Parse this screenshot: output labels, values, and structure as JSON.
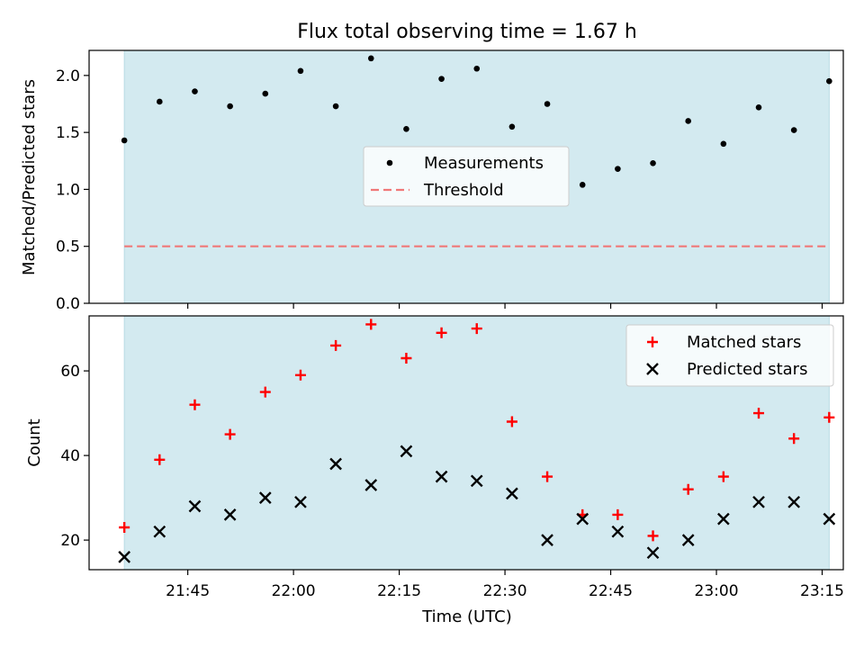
{
  "title": "Flux total observing time = 1.67 h",
  "x_axis": {
    "label": "Time (UTC)",
    "range": [
      "21:31",
      "23:18"
    ],
    "ticks": [
      "21:45",
      "22:00",
      "22:15",
      "22:30",
      "22:45",
      "23:00",
      "23:15"
    ]
  },
  "chart_data": [
    {
      "type": "scatter",
      "title": "Flux total observing time = 1.67 h",
      "ylabel": "Matched/Predicted stars",
      "ylim": [
        0,
        2.22
      ],
      "yticks": [
        "0.0",
        "0.5",
        "1.0",
        "1.5",
        "2.0"
      ],
      "shaded_region": {
        "start": "21:36",
        "end": "23:16",
        "color": "#d3eaf0"
      },
      "threshold": {
        "name": "Threshold",
        "value": 0.5,
        "color": "#f07878",
        "style": "dashed"
      },
      "legend": {
        "placement": "center",
        "entries": [
          "Measurements",
          "Threshold"
        ]
      },
      "series": [
        {
          "name": "Measurements",
          "marker": "dot",
          "color": "#000000",
          "x": [
            "21:36",
            "21:41",
            "21:46",
            "21:51",
            "21:56",
            "22:01",
            "22:06",
            "22:11",
            "22:16",
            "22:21",
            "22:26",
            "22:31",
            "22:36",
            "22:41",
            "22:46",
            "22:51",
            "22:56",
            "23:01",
            "23:06",
            "23:11",
            "23:16"
          ],
          "y": [
            1.43,
            1.77,
            1.86,
            1.73,
            1.84,
            2.04,
            1.73,
            2.15,
            1.53,
            1.97,
            2.06,
            1.55,
            1.75,
            1.04,
            1.18,
            1.23,
            1.6,
            1.4,
            1.72,
            1.52,
            1.95
          ]
        }
      ]
    },
    {
      "type": "scatter",
      "ylabel": "Count",
      "xlabel": "Time (UTC)",
      "ylim": [
        13,
        73
      ],
      "yticks": [
        "20",
        "40",
        "60"
      ],
      "shaded_region": {
        "start": "21:36",
        "end": "23:16",
        "color": "#d3eaf0"
      },
      "legend": {
        "placement": "top-right",
        "entries": [
          "Matched stars",
          "Predicted stars"
        ]
      },
      "series": [
        {
          "name": "Matched stars",
          "marker": "plus",
          "color": "#ff0000",
          "x": [
            "21:36",
            "21:41",
            "21:46",
            "21:51",
            "21:56",
            "22:01",
            "22:06",
            "22:11",
            "22:16",
            "22:21",
            "22:26",
            "22:31",
            "22:36",
            "22:41",
            "22:46",
            "22:51",
            "22:56",
            "23:01",
            "23:06",
            "23:11",
            "23:16"
          ],
          "y": [
            23,
            39,
            52,
            45,
            55,
            59,
            66,
            71,
            63,
            69,
            70,
            48,
            35,
            26,
            26,
            21,
            32,
            35,
            50,
            44,
            49
          ]
        },
        {
          "name": "Predicted stars",
          "marker": "x",
          "color": "#000000",
          "x": [
            "21:36",
            "21:41",
            "21:46",
            "21:51",
            "21:56",
            "22:01",
            "22:06",
            "22:11",
            "22:16",
            "22:21",
            "22:26",
            "22:31",
            "22:36",
            "22:41",
            "22:46",
            "22:51",
            "22:56",
            "23:01",
            "23:06",
            "23:11",
            "23:16"
          ],
          "y": [
            16,
            22,
            28,
            26,
            30,
            29,
            38,
            33,
            41,
            35,
            34,
            31,
            20,
            25,
            22,
            17,
            20,
            25,
            29,
            29,
            25
          ]
        }
      ]
    }
  ]
}
